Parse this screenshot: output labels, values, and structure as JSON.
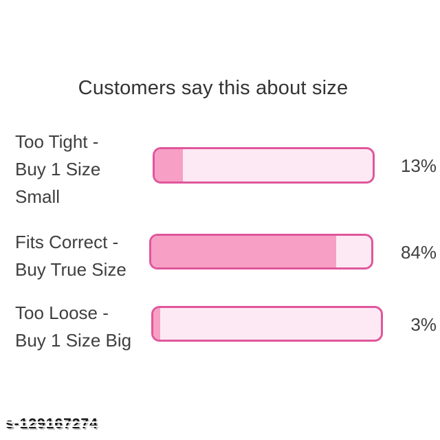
{
  "title": "Customers say this about size",
  "watermark": "s-129167274",
  "colors": {
    "bar_fill": "#f79fc5",
    "bar_track": "#fce9f3",
    "bar_border": "#e0569b",
    "text": "#3f3f3f",
    "background": "#ffffff"
  },
  "chart_data": {
    "type": "bar",
    "orientation": "horizontal",
    "title": "Customers say this about size",
    "categories": [
      "Too Tight - Buy 1 Size Small",
      "Fits Correct - Buy True Size",
      "Too Loose - Buy 1 Size Big"
    ],
    "values": [
      13,
      84,
      3
    ],
    "value_labels": [
      "13%",
      "84%",
      "3%"
    ],
    "xlim": [
      0,
      100
    ],
    "xlabel": "",
    "ylabel": "",
    "grid": false,
    "legend": false
  },
  "rows": [
    {
      "label_lines": [
        "Too Tight -",
        "Buy 1 Size",
        "Small"
      ],
      "value": 13,
      "value_label": "13%"
    },
    {
      "label_lines": [
        "Fits Correct -",
        "Buy True Size",
        ""
      ],
      "value": 84,
      "value_label": "84%"
    },
    {
      "label_lines": [
        "Too Loose -",
        "Buy 1 Size Big",
        ""
      ],
      "value": 3,
      "value_label": "3%"
    }
  ]
}
